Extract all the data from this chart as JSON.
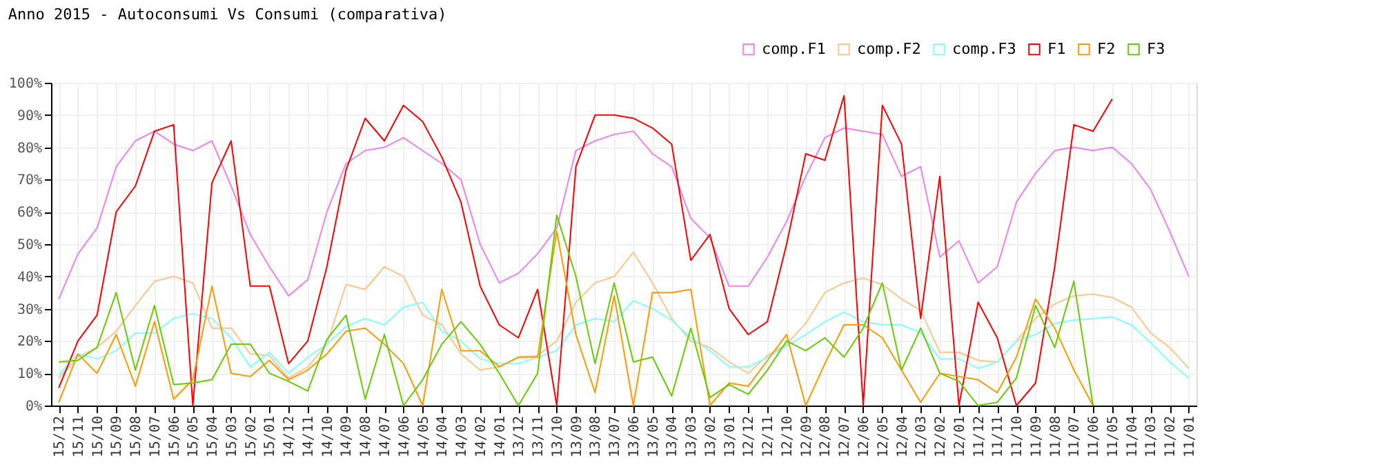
{
  "chart_data": {
    "type": "line",
    "title": "Anno 2015 - Autoconsumi Vs Consumi (comparativa)",
    "categories": [
      "15/12",
      "15/11",
      "15/10",
      "15/09",
      "15/08",
      "15/07",
      "15/06",
      "15/05",
      "15/04",
      "15/03",
      "15/02",
      "15/01",
      "14/12",
      "14/11",
      "14/10",
      "14/09",
      "14/08",
      "14/07",
      "14/06",
      "14/05",
      "14/04",
      "14/03",
      "14/02",
      "14/01",
      "13/12",
      "13/11",
      "13/10",
      "13/09",
      "13/08",
      "13/07",
      "13/06",
      "13/05",
      "13/04",
      "13/03",
      "13/02",
      "13/01",
      "12/12",
      "12/11",
      "12/10",
      "12/09",
      "12/08",
      "12/07",
      "12/06",
      "12/05",
      "12/04",
      "12/03",
      "12/02",
      "12/01",
      "11/12",
      "11/11",
      "11/10",
      "11/09",
      "11/08",
      "11/07",
      "11/06",
      "11/05",
      "11/04",
      "11/03",
      "11/02",
      "11/01"
    ],
    "series": [
      {
        "name": "comp.F1",
        "color": "#ee82ee",
        "values": [
          33,
          47,
          55,
          74,
          82,
          85,
          81,
          79,
          82,
          68,
          53,
          43,
          34,
          39,
          60,
          75,
          79,
          80,
          83,
          79,
          75,
          70,
          50,
          38,
          41,
          47,
          55,
          79,
          82,
          84,
          85,
          78,
          74,
          58,
          52,
          37,
          37,
          46,
          57,
          71,
          83,
          86,
          85,
          84,
          71,
          74,
          46,
          51,
          38,
          43,
          63,
          72,
          79,
          80,
          79,
          80,
          75,
          67,
          54,
          40
        ]
      },
      {
        "name": "comp.F2",
        "color": "#ffc48c",
        "values": [
          8.5,
          15,
          18,
          23,
          31,
          38.5,
          40,
          38,
          24,
          24,
          16,
          15.5,
          8.5,
          12,
          19,
          37.5,
          36,
          43,
          40,
          28,
          25,
          16,
          11,
          12,
          15,
          15.5,
          20,
          32,
          38,
          40,
          47.5,
          38,
          27,
          20,
          18,
          13.5,
          10,
          15.5,
          19,
          25.5,
          35,
          38,
          39.5,
          37.5,
          33,
          29.5,
          16.5,
          16.5,
          14,
          13.5,
          20,
          27,
          31.5,
          34,
          34.5,
          33.5,
          30.5,
          22.5,
          18,
          11.5
        ]
      },
      {
        "name": "comp.F3",
        "color": "#80ffff",
        "values": [
          9.5,
          16,
          14.5,
          17,
          22.5,
          22.5,
          27,
          28.5,
          27,
          21,
          12,
          16.5,
          10,
          15,
          19,
          24.5,
          27,
          25,
          30.5,
          32,
          23,
          20,
          14.5,
          13,
          13,
          15,
          17,
          25,
          27,
          26,
          32.5,
          30,
          26.5,
          21,
          17,
          12,
          12,
          15,
          18.5,
          22,
          26,
          29,
          26,
          25,
          25,
          22.5,
          14.5,
          14.5,
          11.5,
          13.5,
          20,
          22,
          25.5,
          26.5,
          27,
          27.5,
          25,
          19.5,
          13.5,
          8.5
        ]
      },
      {
        "name": "F1",
        "color": "#ff0000",
        "values": [
          5.5,
          20,
          28,
          60,
          68,
          85,
          87,
          0,
          69,
          82,
          37,
          37,
          13,
          20,
          43,
          73,
          89,
          82,
          93,
          88,
          77,
          63,
          37,
          25,
          21,
          36,
          0,
          74,
          90,
          90,
          89,
          86,
          81,
          45,
          53,
          30,
          22,
          26,
          50,
          78,
          76,
          96,
          0,
          93,
          81,
          27,
          71,
          0,
          32,
          21,
          0,
          7,
          43,
          87,
          85,
          95,
          null,
          null,
          null,
          null
        ]
      },
      {
        "name": "F2",
        "color": "#ff9900",
        "values": [
          1,
          16,
          10,
          22,
          6,
          26,
          2,
          8,
          37,
          10,
          9,
          14,
          8,
          11,
          16,
          23,
          24,
          19,
          13,
          0,
          36,
          17,
          17,
          12,
          15,
          15,
          54,
          22,
          4,
          34,
          0,
          35,
          35,
          36,
          0,
          7,
          6,
          14,
          22,
          0,
          13,
          25,
          25,
          21,
          11,
          1,
          10,
          9,
          8,
          4,
          15,
          33,
          24,
          11,
          0,
          null,
          null,
          null,
          null,
          null
        ]
      },
      {
        "name": "F3",
        "color": "#66cc00",
        "values": [
          13.5,
          14,
          18,
          35,
          11,
          31,
          6.5,
          7,
          8,
          19,
          19,
          10,
          7.5,
          4.5,
          20.5,
          28,
          2,
          22,
          0,
          8,
          19,
          26,
          19,
          10,
          0,
          10,
          59,
          40,
          13,
          38,
          13.5,
          15,
          3,
          24,
          2.5,
          6.5,
          3.5,
          11,
          20,
          17,
          21,
          15,
          24,
          38,
          11,
          24,
          10,
          7.5,
          0,
          1,
          8.5,
          31,
          18,
          38.5,
          0,
          null,
          null,
          null,
          null,
          null
        ]
      }
    ],
    "ylim": [
      0,
      100
    ],
    "yticks": [
      {
        "value": 0,
        "label": "0%"
      },
      {
        "value": 10,
        "label": "10%"
      },
      {
        "value": 20,
        "label": "20%"
      },
      {
        "value": 30,
        "label": "30%"
      },
      {
        "value": 40,
        "label": "40%"
      },
      {
        "value": 50,
        "label": "50%"
      },
      {
        "value": 60,
        "label": "60%"
      },
      {
        "value": 70,
        "label": "70%"
      },
      {
        "value": 80,
        "label": "80%"
      },
      {
        "value": 90,
        "label": "90%"
      },
      {
        "value": 100,
        "label": "100%"
      }
    ],
    "grid": true,
    "legend": "top right",
    "marker": "none",
    "line_style": "solid"
  }
}
